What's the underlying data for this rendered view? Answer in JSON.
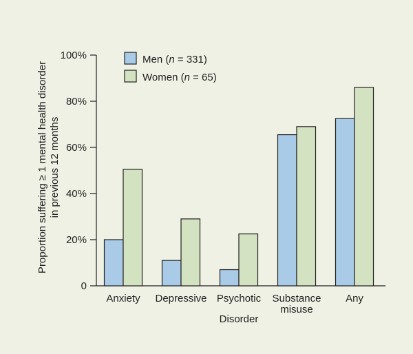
{
  "chart_data": {
    "type": "bar",
    "title": "",
    "xlabel": "Disorder",
    "ylabel_line1": "Proportion suffering ≥ 1 mental health disorder",
    "ylabel_line2": "in previous 12 months",
    "ylim": [
      0,
      100
    ],
    "yticks": [
      0,
      20,
      40,
      60,
      80,
      100
    ],
    "ytick_labels": [
      "0",
      "20%",
      "40%",
      "60%",
      "80%",
      "100%"
    ],
    "categories": [
      [
        "Anxiety"
      ],
      [
        "Depressive"
      ],
      [
        "Psychotic"
      ],
      [
        "Substance",
        "misuse"
      ],
      [
        "Any"
      ]
    ],
    "series": [
      {
        "name": "Men",
        "n_label": "n",
        "n_value": "331",
        "color": "#a9cbe8",
        "values": [
          20,
          11,
          7,
          65.5,
          72.5
        ]
      },
      {
        "name": "Women",
        "n_label": "n",
        "n_value": "65",
        "color": "#d3e3c2",
        "values": [
          50.5,
          29,
          22.5,
          69,
          86
        ]
      }
    ],
    "legend_position": "top-left",
    "grid": false
  },
  "colors": {
    "background": "#eef1e3",
    "axis": "#231f20"
  }
}
